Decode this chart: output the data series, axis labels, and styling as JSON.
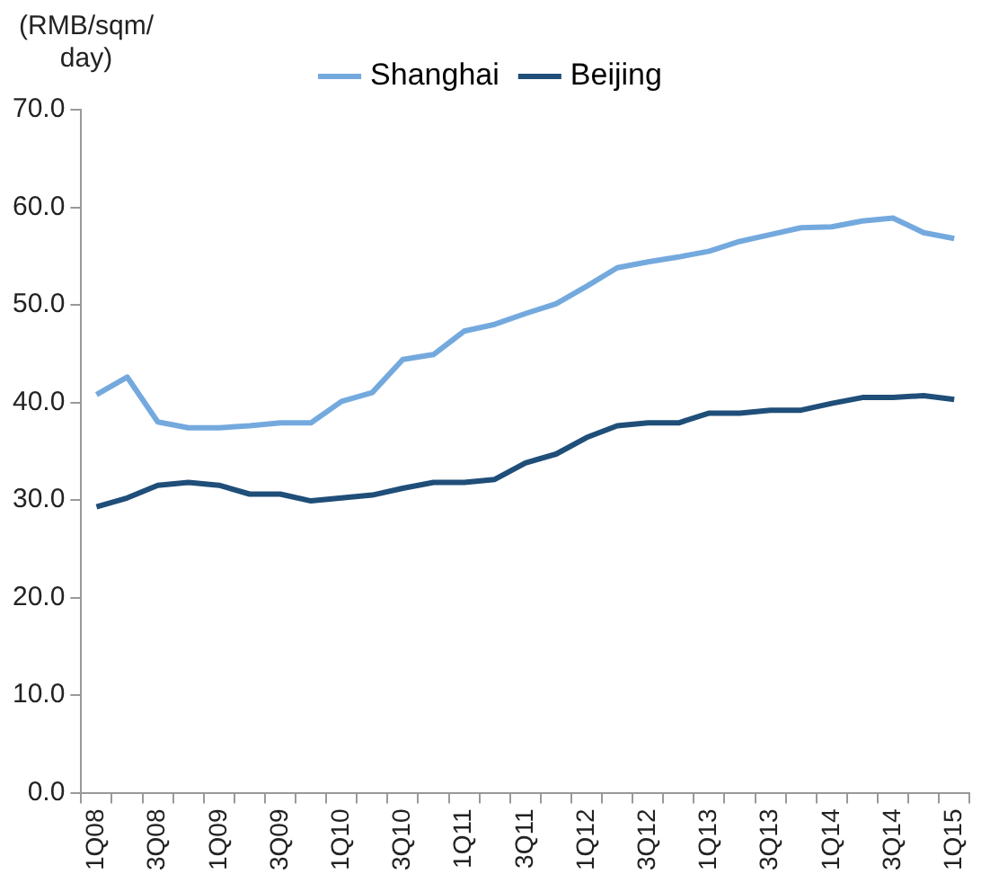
{
  "chart_data": {
    "type": "line",
    "ylabel": "(RMB/sqm/ day)",
    "categories": [
      "1Q08",
      null,
      "3Q08",
      null,
      "1Q09",
      null,
      "3Q09",
      null,
      "1Q10",
      null,
      "3Q10",
      null,
      "1Q11",
      null,
      "3Q11",
      null,
      "1Q12",
      null,
      "3Q12",
      null,
      "1Q13",
      null,
      "3Q13",
      null,
      "1Q14",
      null,
      "3Q14",
      null,
      "1Q15"
    ],
    "series": [
      {
        "name": "Shanghai",
        "color": "#74a9de",
        "values": [
          40.8,
          42.6,
          38.0,
          37.4,
          37.4,
          37.6,
          37.9,
          37.9,
          40.1,
          41.0,
          44.4,
          44.9,
          47.3,
          48.0,
          49.1,
          50.1,
          51.9,
          53.8,
          54.4,
          54.9,
          55.5,
          56.5,
          57.2,
          57.9,
          58.0,
          58.6,
          58.9,
          57.4,
          56.8
        ]
      },
      {
        "name": "Beijing",
        "color": "#1f4e79",
        "values": [
          29.3,
          30.2,
          31.5,
          31.8,
          31.5,
          30.6,
          30.6,
          29.9,
          30.2,
          30.5,
          31.2,
          31.8,
          31.8,
          32.1,
          33.8,
          34.7,
          36.4,
          37.6,
          37.9,
          37.9,
          38.9,
          38.9,
          39.2,
          39.2,
          39.9,
          40.5,
          40.5,
          40.7,
          40.3
        ]
      }
    ],
    "ylim": [
      0,
      70
    ],
    "yticks": [
      {
        "value": 0,
        "label": "0.0"
      },
      {
        "value": 10,
        "label": "10.0"
      },
      {
        "value": 20,
        "label": "20.0"
      },
      {
        "value": 30,
        "label": "30.0"
      },
      {
        "value": 40,
        "label": "40.0"
      },
      {
        "value": 50,
        "label": "50.0"
      },
      {
        "value": 60,
        "label": "60.0"
      },
      {
        "value": 70,
        "label": "70.0"
      }
    ],
    "grid": false,
    "legend": "top",
    "marker": "none",
    "line_style": "solid"
  }
}
